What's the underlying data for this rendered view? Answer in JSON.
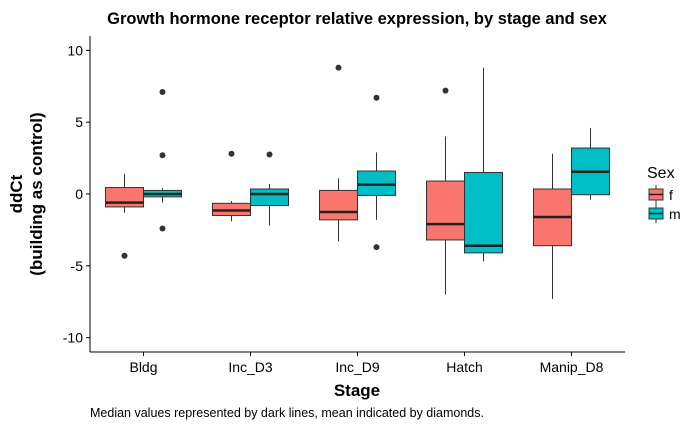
{
  "chart_data": {
    "type": "boxplot",
    "title": "Growth hormone receptor relative expression, by stage and sex",
    "xlabel": "Stage",
    "ylabel": [
      "ddCt",
      "(building as control)"
    ],
    "ylim": [
      -11,
      11
    ],
    "yticks": [
      -10,
      -5,
      0,
      5,
      10
    ],
    "categories": [
      "Bldg",
      "Inc_D3",
      "Inc_D9",
      "Hatch",
      "Manip_D8"
    ],
    "legend": {
      "title": "Sex",
      "position": "right"
    },
    "series": [
      {
        "name": "f",
        "color": "#F8766D",
        "boxes": [
          {
            "lower_whisker": -1.3,
            "q1": -0.9,
            "median": -0.6,
            "q3": 0.45,
            "upper_whisker": 1.4,
            "outliers": [
              -4.3
            ]
          },
          {
            "lower_whisker": -1.9,
            "q1": -1.5,
            "median": -1.15,
            "q3": -0.65,
            "upper_whisker": -0.5,
            "outliers": [
              2.8
            ]
          },
          {
            "lower_whisker": -3.3,
            "q1": -1.8,
            "median": -1.25,
            "q3": 0.25,
            "upper_whisker": 1.1,
            "outliers": [
              8.8
            ]
          },
          {
            "lower_whisker": -7.0,
            "q1": -3.2,
            "median": -2.1,
            "q3": 0.9,
            "upper_whisker": 4.0,
            "outliers": [
              7.2
            ]
          },
          {
            "lower_whisker": -7.3,
            "q1": -3.6,
            "median": -1.6,
            "q3": 0.35,
            "upper_whisker": 2.8,
            "outliers": []
          }
        ]
      },
      {
        "name": "m",
        "color": "#00BFC4",
        "boxes": [
          {
            "lower_whisker": -0.6,
            "q1": -0.2,
            "median": 0.0,
            "q3": 0.25,
            "upper_whisker": 0.4,
            "outliers": [
              7.1,
              2.7,
              -2.4
            ]
          },
          {
            "lower_whisker": -2.2,
            "q1": -0.8,
            "median": 0.0,
            "q3": 0.35,
            "upper_whisker": 0.7,
            "outliers": [
              2.75
            ]
          },
          {
            "lower_whisker": -1.8,
            "q1": -0.1,
            "median": 0.65,
            "q3": 1.6,
            "upper_whisker": 2.9,
            "outliers": [
              6.7,
              -3.7
            ]
          },
          {
            "lower_whisker": -4.7,
            "q1": -4.1,
            "median": -3.6,
            "q3": 1.5,
            "upper_whisker": 8.8,
            "outliers": []
          },
          {
            "lower_whisker": -0.4,
            "q1": -0.05,
            "median": 1.55,
            "q3": 3.2,
            "upper_whisker": 4.6,
            "outliers": []
          }
        ]
      }
    ],
    "grid": false
  },
  "caption": "Median values represented by dark lines, mean indicated by diamonds."
}
